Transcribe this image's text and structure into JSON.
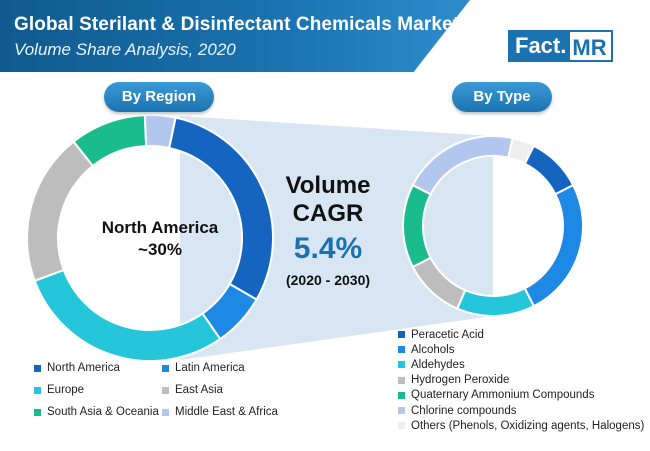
{
  "header": {
    "title": "Global Sterilant & Disinfectant Chemicals Market",
    "subtitle": "Volume Share Analysis, 2020"
  },
  "logo": {
    "left_text": "Fact",
    "dot": ".",
    "right_text": "MR"
  },
  "region_label": "By Region",
  "type_label": "By Type",
  "center_label": {
    "line1": "North America",
    "line2": "~30%"
  },
  "cagr": {
    "title_line1": "Volume",
    "title_line2": "CAGR",
    "value": "5.4%",
    "period": "(2020 - 2030)"
  },
  "colors": {
    "brand": "#1a73b0",
    "connector": "#d8e6f4"
  },
  "chart_data": [
    {
      "type": "pie",
      "name": "By Region",
      "categories": [
        "North America",
        "Latin America",
        "Europe",
        "East Asia",
        "South Asia & Oceania",
        "Middle East & Africa"
      ],
      "values": [
        30,
        7,
        29,
        20,
        10,
        4
      ],
      "colors": [
        "#1565c0",
        "#1e88e5",
        "#26c6da",
        "#bdbdbd",
        "#1abc8c",
        "#b3c7ee"
      ]
    },
    {
      "type": "pie",
      "name": "By Type",
      "categories": [
        "Peracetic Acid",
        "Alcohols",
        "Aldehydes",
        "Hydrogen Peroxide",
        "Quaternary Ammonium Compounds",
        "Chlorine compounds",
        "Others (Phenols, Oxidizing agents, Halogens)"
      ],
      "values": [
        10,
        25,
        14,
        11,
        15,
        21,
        4
      ],
      "colors": [
        "#1565c0",
        "#1e88e5",
        "#26c6da",
        "#bdbdbd",
        "#1abc8c",
        "#b3c7ee",
        "#eeeeee"
      ]
    }
  ]
}
